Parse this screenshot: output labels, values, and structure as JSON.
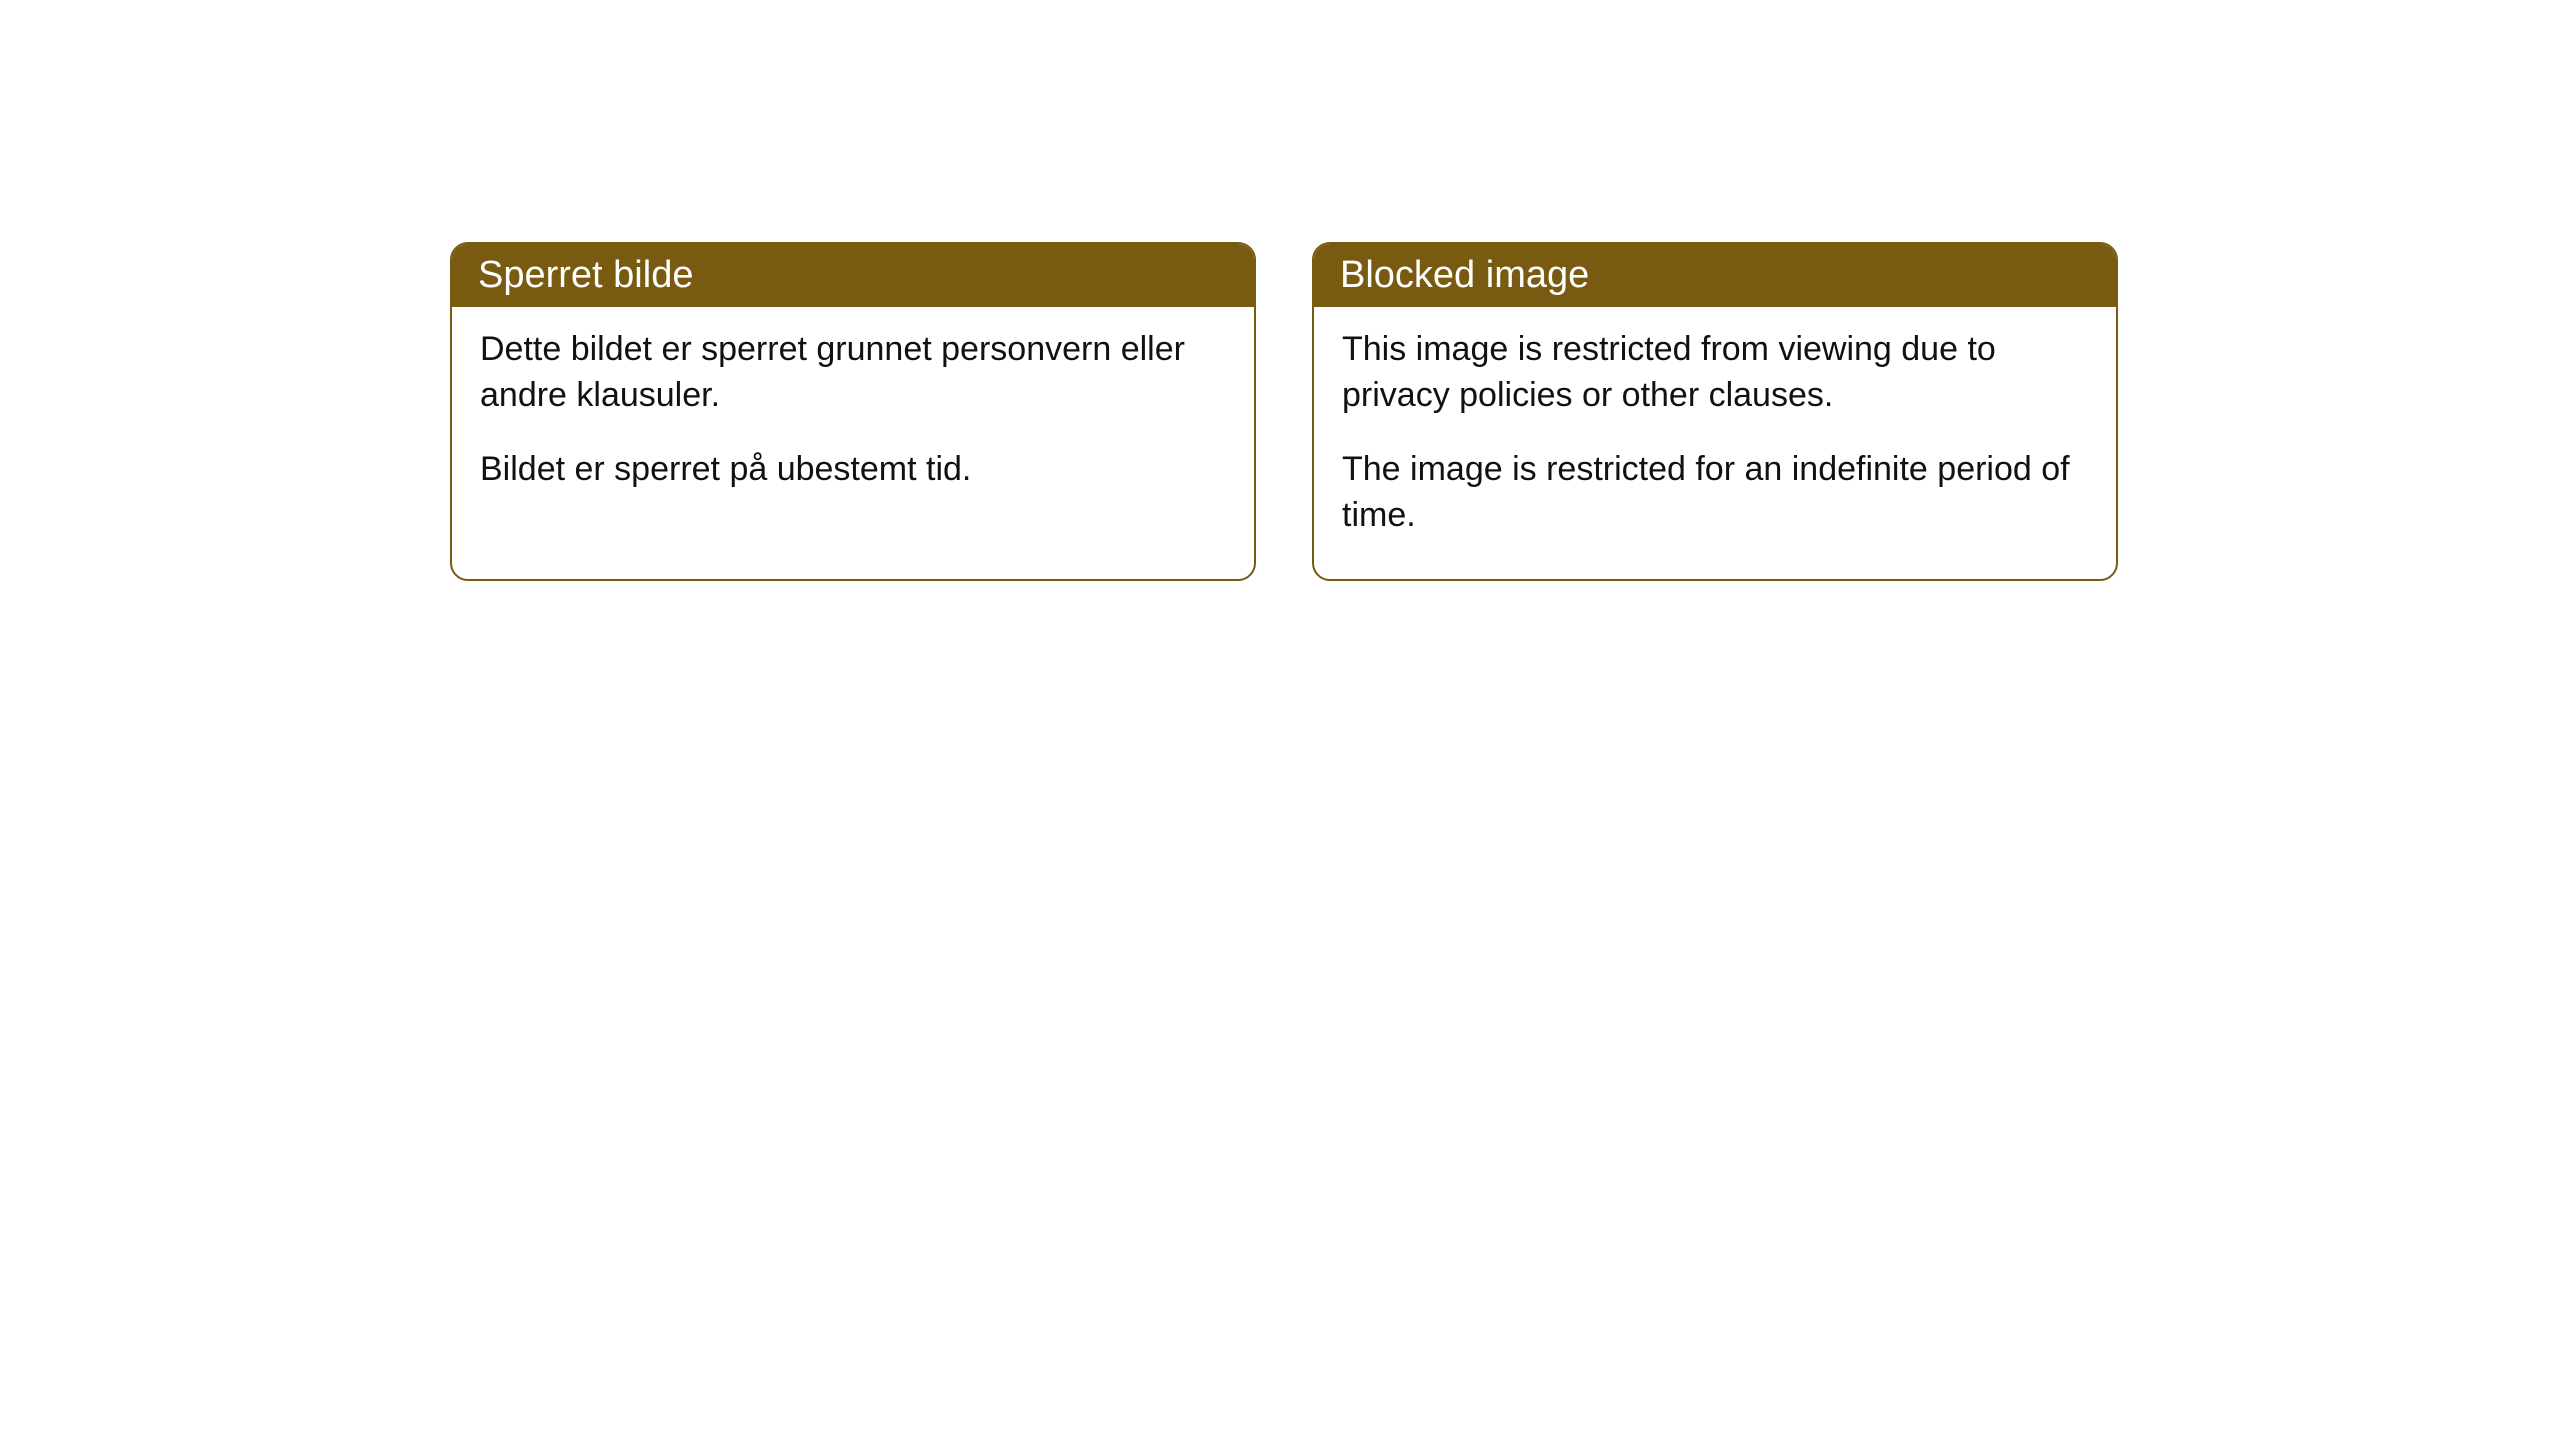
{
  "cards": [
    {
      "title": "Sperret bilde",
      "paragraph1": "Dette bildet er sperret grunnet personvern eller andre klausuler.",
      "paragraph2": "Bildet er sperret på ubestemt tid."
    },
    {
      "title": "Blocked image",
      "paragraph1": "This image is restricted from viewing due to privacy policies or other clauses.",
      "paragraph2": "The image is restricted for an indefinite period of time."
    }
  ],
  "style": {
    "header_background": "#785a11",
    "header_text_color": "#ffffff",
    "border_color": "#785a11",
    "body_text_color": "#111111",
    "card_background": "#ffffff",
    "page_background": "#ffffff",
    "border_radius": 18,
    "title_fontsize": 38,
    "body_fontsize": 34
  }
}
